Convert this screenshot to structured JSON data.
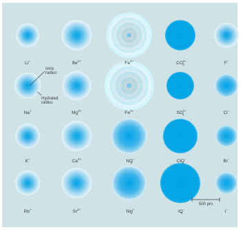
{
  "colors": {
    "background": "#cfe3e6",
    "ion_core": "#00a3e6",
    "ion_mid": "#3cb4ea",
    "ion_halo": "#d8eef7",
    "text": "#3a3a3a"
  },
  "ions": [
    {
      "id": "li",
      "base": "Li",
      "sup": "+",
      "sub": ""
    },
    {
      "id": "be",
      "base": "Be",
      "sup": "2+",
      "sub": ""
    },
    {
      "id": "fe2",
      "base": "Fe",
      "sup": "2+",
      "sub": ""
    },
    {
      "id": "co3",
      "base": "CO",
      "sup": "2−",
      "sub": "3"
    },
    {
      "id": "f",
      "base": "F",
      "sup": "−",
      "sub": ""
    },
    {
      "id": "na",
      "base": "Na",
      "sup": "+",
      "sub": ""
    },
    {
      "id": "mg",
      "base": "Mg",
      "sup": "2+",
      "sub": ""
    },
    {
      "id": "fe3",
      "base": "Fe",
      "sup": "3+",
      "sub": ""
    },
    {
      "id": "so4",
      "base": "SO",
      "sup": "2−",
      "sub": "4"
    },
    {
      "id": "cl",
      "base": "Cl",
      "sup": "−",
      "sub": ""
    },
    {
      "id": "k",
      "base": "K",
      "sup": "+",
      "sub": ""
    },
    {
      "id": "ca",
      "base": "Ca",
      "sup": "2+",
      "sub": ""
    },
    {
      "id": "no3",
      "base": "NO",
      "sup": "−",
      "sub": "3"
    },
    {
      "id": "clo4",
      "base": "ClO",
      "sup": "−",
      "sub": "4"
    },
    {
      "id": "br",
      "base": "Br",
      "sup": "−",
      "sub": ""
    },
    {
      "id": "rb",
      "base": "Rb",
      "sup": "+",
      "sub": ""
    },
    {
      "id": "sr",
      "base": "Sr",
      "sup": "2+",
      "sub": ""
    },
    {
      "id": "nh4",
      "base": "NH",
      "sup": "+",
      "sub": "4"
    },
    {
      "id": "io3",
      "base": "IO",
      "sup": "−",
      "sub": "3"
    },
    {
      "id": "i",
      "base": "I",
      "sup": "−",
      "sub": ""
    }
  ],
  "annotations": {
    "ionic_radius": "Ionic\nradius",
    "hydrated_radius": "Hydrated\nradius"
  },
  "scale_bar": {
    "label": "500 pm"
  }
}
